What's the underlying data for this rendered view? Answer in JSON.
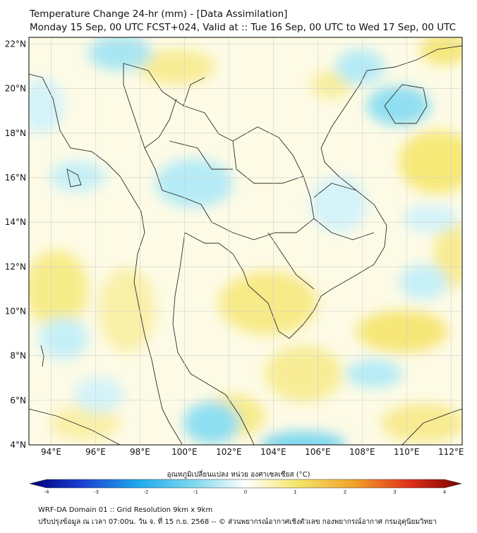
{
  "title_line1": "Temperature Change 24-hr (mm) - [Data Assimilation]",
  "title_line2": "Monday 15 Sep, 00 UTC FCST+024, Valid at :: Tue 16 Sep, 00 UTC to Wed 17 Sep, 00 UTC",
  "map": {
    "lon_range": [
      93,
      112.5
    ],
    "lat_range": [
      4,
      22.3
    ],
    "lon_ticks": [
      "94°E",
      "96°E",
      "98°E",
      "100°E",
      "102°E",
      "104°E",
      "106°E",
      "108°E",
      "110°E",
      "112°E"
    ],
    "lat_ticks": [
      "22°N",
      "20°N",
      "18°N",
      "16°N",
      "14°N",
      "12°N",
      "10°N",
      "8°N",
      "6°N",
      "4°N"
    ],
    "gridlines": true
  },
  "colorbar": {
    "label": "อุณหภูมิเปลี่ยนแปลง หน่วย องศาเซลเซียส (°C)",
    "ticks": [
      "-4",
      "-3",
      "-2",
      "-1",
      "0",
      "1",
      "2",
      "3",
      "4"
    ],
    "min": -4,
    "max": 4,
    "colors": {
      "cold_end": "#00007a",
      "cool": "#1ec8ee",
      "neutral": "#ffffff",
      "warm": "#f5e34a",
      "hot_end": "#7a0000"
    }
  },
  "footer_line1": "WRF-DA Domain 01 :: Grid Resolution 9km x 9km",
  "footer_line2": "ปรับปรุงข้อมูล ณ เวลา 07:00น. วัน จ. ที่ 15 ก.ย. 2568 -- © ส่วนพยากรณ์อากาศเชิงตัวเลข กองพยากรณ์อากาศ กรมอุตุนิยมวิทยา"
}
